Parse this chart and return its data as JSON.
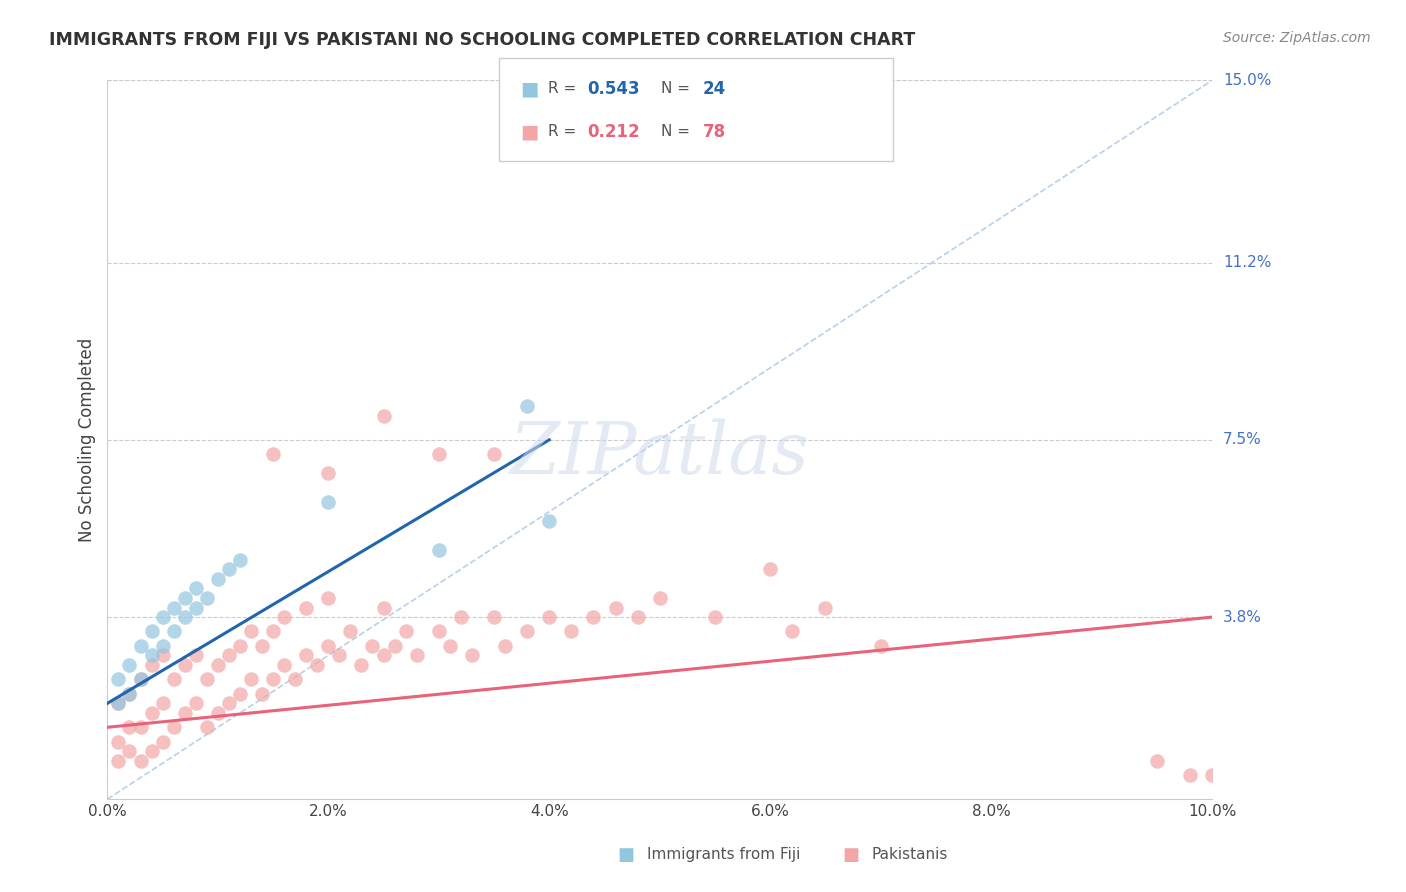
{
  "title": "IMMIGRANTS FROM FIJI VS PAKISTANI NO SCHOOLING COMPLETED CORRELATION CHART",
  "source": "Source: ZipAtlas.com",
  "ylabel": "No Schooling Completed",
  "legend_labels": [
    "Immigrants from Fiji",
    "Pakistanis"
  ],
  "fiji_R": 0.543,
  "fiji_N": 24,
  "pak_R": 0.212,
  "pak_N": 78,
  "xlim": [
    0.0,
    0.1
  ],
  "ylim": [
    0.0,
    0.15
  ],
  "yticks": [
    0.038,
    0.075,
    0.112,
    0.15
  ],
  "ytick_labels": [
    "3.8%",
    "7.5%",
    "11.2%",
    "15.0%"
  ],
  "xticks": [
    0.0,
    0.02,
    0.04,
    0.06,
    0.08,
    0.1
  ],
  "xtick_labels": [
    "0.0%",
    "2.0%",
    "4.0%",
    "6.0%",
    "8.0%",
    "10.0%"
  ],
  "fiji_color": "#92c5de",
  "pak_color": "#f4a6a6",
  "fiji_line_color": "#2166ac",
  "pak_line_color": "#e8637a",
  "ref_line_color": "#b8d0e8",
  "watermark": "ZIPatlas",
  "fiji_line_x0": 0.0,
  "fiji_line_y0": 0.02,
  "fiji_line_x1": 0.04,
  "fiji_line_y1": 0.075,
  "pak_line_x0": 0.0,
  "pak_line_y0": 0.015,
  "pak_line_x1": 0.1,
  "pak_line_y1": 0.038,
  "fiji_points_x": [
    0.001,
    0.001,
    0.002,
    0.002,
    0.003,
    0.003,
    0.004,
    0.004,
    0.005,
    0.005,
    0.006,
    0.006,
    0.007,
    0.007,
    0.008,
    0.008,
    0.009,
    0.01,
    0.011,
    0.012,
    0.02,
    0.03,
    0.038,
    0.04
  ],
  "fiji_points_y": [
    0.02,
    0.025,
    0.022,
    0.028,
    0.025,
    0.032,
    0.03,
    0.035,
    0.032,
    0.038,
    0.035,
    0.04,
    0.038,
    0.042,
    0.04,
    0.044,
    0.042,
    0.046,
    0.048,
    0.05,
    0.062,
    0.052,
    0.082,
    0.058
  ],
  "pak_points_x": [
    0.001,
    0.001,
    0.001,
    0.002,
    0.002,
    0.002,
    0.003,
    0.003,
    0.003,
    0.004,
    0.004,
    0.004,
    0.005,
    0.005,
    0.005,
    0.006,
    0.006,
    0.007,
    0.007,
    0.008,
    0.008,
    0.009,
    0.009,
    0.01,
    0.01,
    0.011,
    0.011,
    0.012,
    0.012,
    0.013,
    0.013,
    0.014,
    0.014,
    0.015,
    0.015,
    0.016,
    0.016,
    0.017,
    0.018,
    0.018,
    0.019,
    0.02,
    0.02,
    0.021,
    0.022,
    0.023,
    0.024,
    0.025,
    0.025,
    0.026,
    0.027,
    0.028,
    0.03,
    0.031,
    0.032,
    0.033,
    0.035,
    0.036,
    0.038,
    0.04,
    0.042,
    0.044,
    0.046,
    0.048,
    0.05,
    0.055,
    0.06,
    0.062,
    0.065,
    0.07,
    0.015,
    0.02,
    0.025,
    0.03,
    0.035,
    0.095,
    0.098,
    0.1
  ],
  "pak_points_y": [
    0.008,
    0.012,
    0.02,
    0.01,
    0.015,
    0.022,
    0.008,
    0.015,
    0.025,
    0.01,
    0.018,
    0.028,
    0.012,
    0.02,
    0.03,
    0.015,
    0.025,
    0.018,
    0.028,
    0.02,
    0.03,
    0.015,
    0.025,
    0.018,
    0.028,
    0.02,
    0.03,
    0.022,
    0.032,
    0.025,
    0.035,
    0.022,
    0.032,
    0.025,
    0.035,
    0.028,
    0.038,
    0.025,
    0.03,
    0.04,
    0.028,
    0.032,
    0.042,
    0.03,
    0.035,
    0.028,
    0.032,
    0.03,
    0.04,
    0.032,
    0.035,
    0.03,
    0.035,
    0.032,
    0.038,
    0.03,
    0.038,
    0.032,
    0.035,
    0.038,
    0.035,
    0.038,
    0.04,
    0.038,
    0.042,
    0.038,
    0.048,
    0.035,
    0.04,
    0.032,
    0.072,
    0.068,
    0.08,
    0.072,
    0.072,
    0.008,
    0.005,
    0.005
  ],
  "background_color": "#ffffff"
}
